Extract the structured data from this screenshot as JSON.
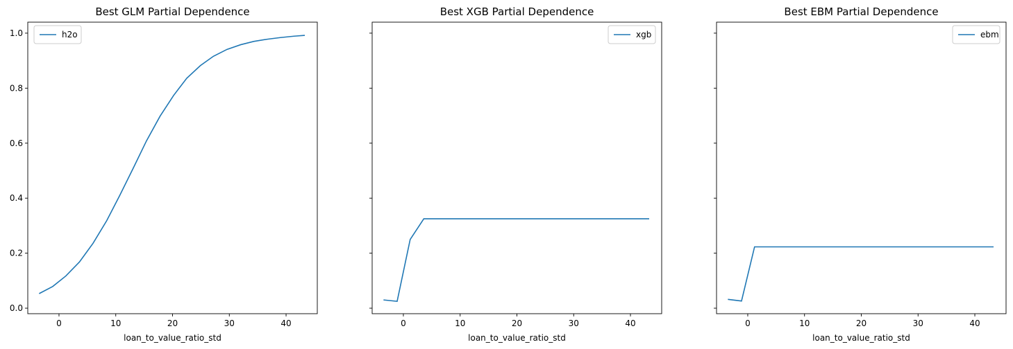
{
  "chart_data": [
    {
      "type": "line",
      "title": "Best GLM Partial Dependence",
      "xlabel": "loan_to_value_ratio_std",
      "ylabel": "",
      "xlim": [
        -5.5,
        45.5
      ],
      "ylim": [
        -0.02,
        1.04
      ],
      "xticks": [
        0,
        10,
        20,
        30,
        40
      ],
      "yticks": [
        0.0,
        0.2,
        0.4,
        0.6,
        0.8,
        1.0
      ],
      "legend_position": "top-left",
      "series": [
        {
          "name": "h2o",
          "color": "#1f77b4",
          "x": [
            -3.5,
            -1.1,
            1.2,
            3.6,
            6.0,
            8.4,
            10.7,
            13.1,
            15.4,
            17.8,
            20.2,
            22.5,
            24.9,
            27.2,
            29.6,
            32.0,
            34.3,
            36.7,
            39.0,
            41.4,
            43.3
          ],
          "y": [
            0.053,
            0.079,
            0.117,
            0.168,
            0.236,
            0.318,
            0.41,
            0.51,
            0.608,
            0.698,
            0.774,
            0.836,
            0.882,
            0.916,
            0.941,
            0.958,
            0.97,
            0.978,
            0.984,
            0.989,
            0.992
          ]
        }
      ]
    },
    {
      "type": "line",
      "title": "Best XGB Partial Dependence",
      "xlabel": "loan_to_value_ratio_std",
      "ylabel": "",
      "xlim": [
        -5.5,
        45.5
      ],
      "ylim": [
        -0.02,
        1.04
      ],
      "xticks": [
        0,
        10,
        20,
        30,
        40
      ],
      "yticks": [
        0.0,
        0.2,
        0.4,
        0.6,
        0.8,
        1.0
      ],
      "legend_position": "top-right",
      "series": [
        {
          "name": "xgb",
          "color": "#1f77b4",
          "x": [
            -3.5,
            -1.1,
            1.2,
            3.6,
            43.3
          ],
          "y": [
            0.03,
            0.025,
            0.25,
            0.325,
            0.325
          ]
        }
      ]
    },
    {
      "type": "line",
      "title": "Best EBM Partial Dependence",
      "xlabel": "loan_to_value_ratio_std",
      "ylabel": "",
      "xlim": [
        -5.5,
        45.5
      ],
      "ylim": [
        -0.02,
        1.04
      ],
      "xticks": [
        0,
        10,
        20,
        30,
        40
      ],
      "yticks": [
        0.0,
        0.2,
        0.4,
        0.6,
        0.8,
        1.0
      ],
      "legend_position": "top-right",
      "series": [
        {
          "name": "ebm",
          "color": "#1f77b4",
          "x": [
            -3.5,
            -1.1,
            1.2,
            43.3
          ],
          "y": [
            0.032,
            0.026,
            0.223,
            0.223
          ]
        }
      ]
    }
  ]
}
